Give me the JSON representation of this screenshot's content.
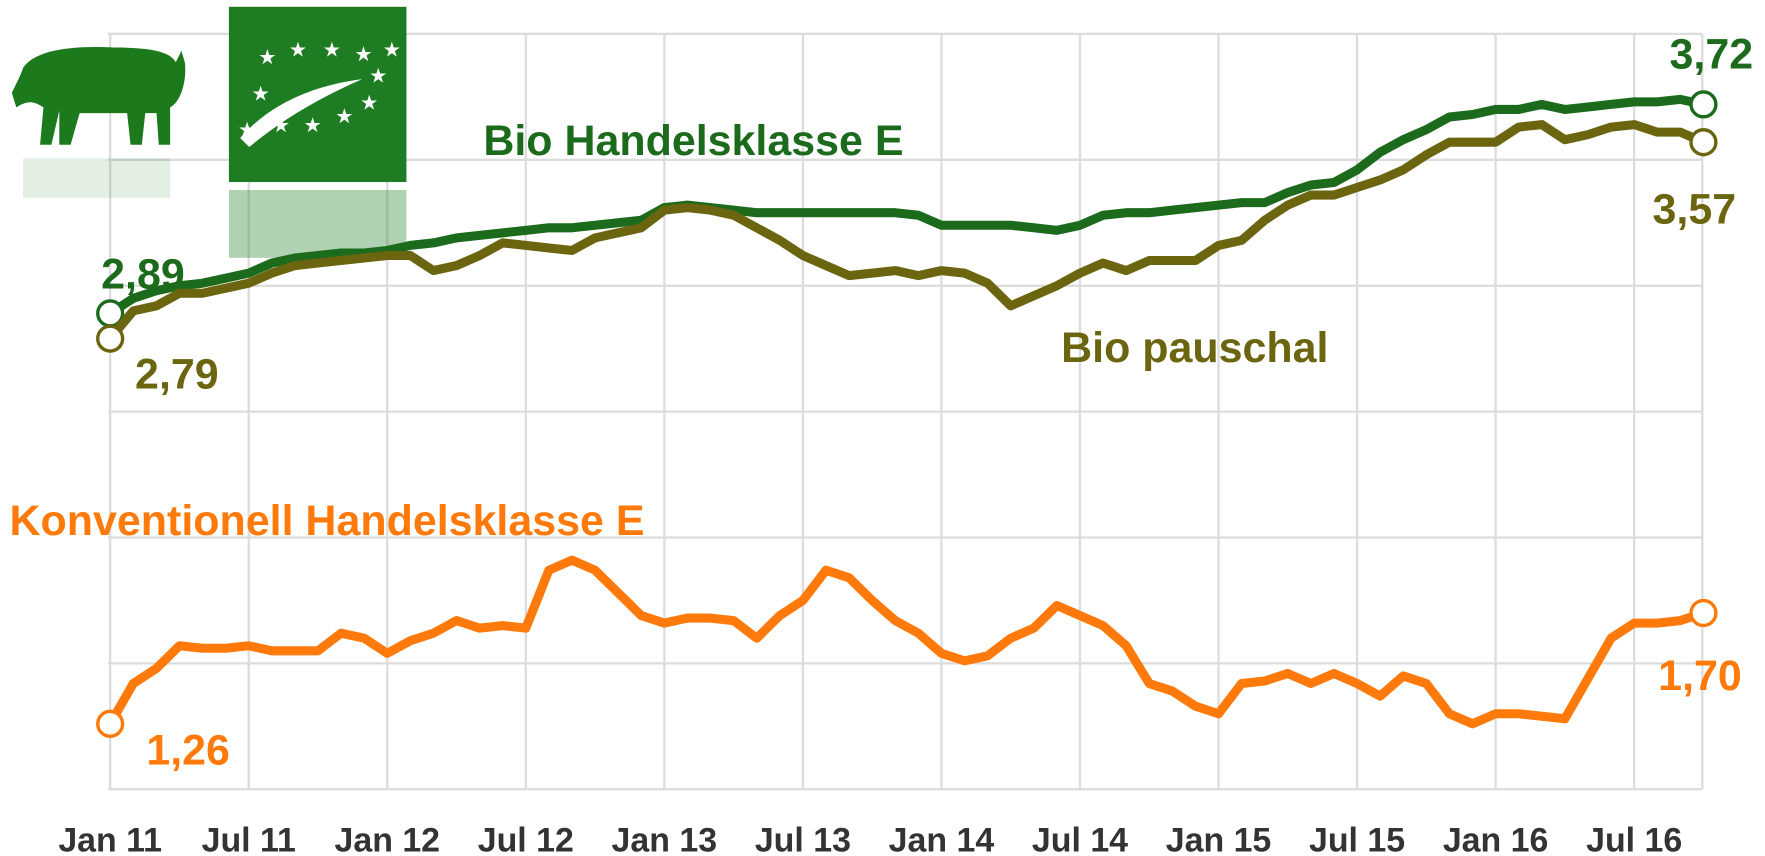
{
  "chart_data": {
    "type": "line",
    "categories": [
      "Jan 11",
      null,
      null,
      null,
      null,
      null,
      "Jul 11",
      null,
      null,
      null,
      null,
      null,
      "Jan 12",
      null,
      null,
      null,
      null,
      null,
      "Jul 12",
      null,
      null,
      null,
      null,
      null,
      "Jan 13",
      null,
      null,
      null,
      null,
      null,
      "Jul 13",
      null,
      null,
      null,
      null,
      null,
      "Jan 14",
      null,
      null,
      null,
      null,
      null,
      "Jul 14",
      null,
      null,
      null,
      null,
      null,
      "Jan 15",
      null,
      null,
      null,
      null,
      null,
      "Jul 15",
      null,
      null,
      null,
      null,
      null,
      "Jan 16",
      null,
      null,
      null,
      null,
      null,
      "Jul 16",
      null,
      null,
      null
    ],
    "ylim": [
      1.0,
      4.0
    ],
    "yticks": [
      1.0,
      1.5,
      2.0,
      2.5,
      3.0,
      3.5,
      4.0
    ],
    "grid": true,
    "series": [
      {
        "name": "Bio Handelsklasse E",
        "color": "#1c6b1c",
        "values": [
          2.89,
          2.95,
          2.98,
          3.0,
          3.01,
          3.03,
          3.05,
          3.09,
          3.11,
          3.12,
          3.13,
          3.13,
          3.14,
          3.16,
          3.17,
          3.19,
          3.2,
          3.21,
          3.22,
          3.23,
          3.23,
          3.24,
          3.25,
          3.26,
          3.31,
          3.32,
          3.31,
          3.3,
          3.29,
          3.29,
          3.29,
          3.29,
          3.29,
          3.29,
          3.29,
          3.28,
          3.24,
          3.24,
          3.24,
          3.24,
          3.23,
          3.22,
          3.24,
          3.28,
          3.29,
          3.29,
          3.3,
          3.31,
          3.32,
          3.33,
          3.33,
          3.37,
          3.4,
          3.41,
          3.46,
          3.53,
          3.58,
          3.62,
          3.67,
          3.68,
          3.7,
          3.7,
          3.72,
          3.7,
          3.71,
          3.72,
          3.73,
          3.73,
          3.74,
          3.72
        ],
        "value_labels": [
          "2,89",
          null,
          null,
          null,
          null,
          null,
          null,
          null,
          null,
          null,
          null,
          null,
          null,
          null,
          null,
          null,
          null,
          null,
          null,
          null,
          null,
          null,
          null,
          null,
          null,
          null,
          null,
          null,
          null,
          null,
          null,
          null,
          null,
          null,
          null,
          null,
          null,
          null,
          null,
          null,
          null,
          null,
          null,
          null,
          null,
          null,
          null,
          null,
          null,
          null,
          null,
          null,
          null,
          null,
          null,
          null,
          null,
          null,
          null,
          null,
          null,
          null,
          null,
          null,
          null,
          null,
          null,
          null,
          null,
          "3,72"
        ]
      },
      {
        "name": "Bio pauschal",
        "color": "#6b6510",
        "values": [
          2.79,
          2.9,
          2.92,
          2.97,
          2.97,
          2.99,
          3.01,
          3.05,
          3.08,
          3.09,
          3.1,
          3.11,
          3.12,
          3.12,
          3.06,
          3.08,
          3.12,
          3.17,
          3.16,
          3.15,
          3.14,
          3.19,
          3.21,
          3.23,
          3.3,
          3.31,
          3.3,
          3.28,
          3.23,
          3.18,
          3.12,
          3.08,
          3.04,
          3.05,
          3.06,
          3.04,
          3.06,
          3.05,
          3.01,
          2.92,
          2.96,
          3.0,
          3.05,
          3.09,
          3.06,
          3.1,
          3.1,
          3.1,
          3.16,
          3.18,
          3.26,
          3.32,
          3.36,
          3.36,
          3.39,
          3.42,
          3.46,
          3.52,
          3.57,
          3.57,
          3.57,
          3.63,
          3.64,
          3.58,
          3.6,
          3.63,
          3.64,
          3.61,
          3.61,
          3.57
        ],
        "value_labels": [
          "2,79",
          null,
          null,
          null,
          null,
          null,
          null,
          null,
          null,
          null,
          null,
          null,
          null,
          null,
          null,
          null,
          null,
          null,
          null,
          null,
          null,
          null,
          null,
          null,
          null,
          null,
          null,
          null,
          null,
          null,
          null,
          null,
          null,
          null,
          null,
          null,
          null,
          null,
          null,
          null,
          null,
          null,
          null,
          null,
          null,
          null,
          null,
          null,
          null,
          null,
          null,
          null,
          null,
          null,
          null,
          null,
          null,
          null,
          null,
          null,
          null,
          null,
          null,
          null,
          null,
          null,
          null,
          null,
          null,
          "3,57"
        ]
      },
      {
        "name": "Konventionell Handelsklasse E",
        "color": "#ff7a0a",
        "values": [
          1.26,
          1.42,
          1.48,
          1.57,
          1.56,
          1.56,
          1.57,
          1.55,
          1.55,
          1.55,
          1.62,
          1.6,
          1.54,
          1.59,
          1.62,
          1.67,
          1.64,
          1.65,
          1.64,
          1.87,
          1.91,
          1.87,
          1.78,
          1.69,
          1.66,
          1.68,
          1.68,
          1.67,
          1.6,
          1.69,
          1.75,
          1.87,
          1.84,
          1.75,
          1.67,
          1.62,
          1.54,
          1.51,
          1.53,
          1.6,
          1.64,
          1.73,
          1.69,
          1.65,
          1.57,
          1.42,
          1.39,
          1.33,
          1.3,
          1.42,
          1.43,
          1.46,
          1.42,
          1.46,
          1.42,
          1.37,
          1.45,
          1.42,
          1.3,
          1.26,
          1.3,
          1.3,
          1.29,
          1.28,
          1.44,
          1.6,
          1.66,
          1.66,
          1.67,
          1.7
        ],
        "value_labels": [
          "1,26",
          null,
          null,
          null,
          null,
          null,
          null,
          null,
          null,
          null,
          null,
          null,
          null,
          null,
          null,
          null,
          null,
          null,
          null,
          null,
          null,
          null,
          null,
          null,
          null,
          null,
          null,
          null,
          null,
          null,
          null,
          null,
          null,
          null,
          null,
          null,
          null,
          null,
          null,
          null,
          null,
          null,
          null,
          null,
          null,
          null,
          null,
          null,
          null,
          null,
          null,
          null,
          null,
          null,
          null,
          null,
          null,
          null,
          null,
          null,
          null,
          null,
          null,
          null,
          null,
          null,
          null,
          null,
          null,
          "1,70"
        ]
      }
    ]
  }
}
